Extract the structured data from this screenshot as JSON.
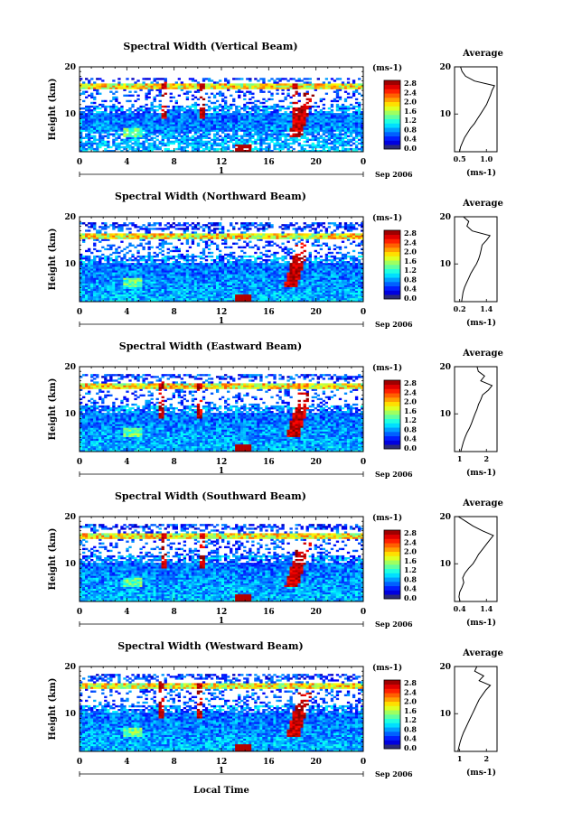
{
  "figure": {
    "xlabel": "Local Time",
    "date_label": "Sep 2006",
    "day_label": "1",
    "ylabel": "Height (km)",
    "colorbar_unit": "(ms-1)",
    "avg_title": "Average",
    "avg_xlabel": "(ms-1)"
  },
  "chart_data": [
    {
      "type": "heatmap",
      "title": "Spectral Width (Vertical Beam)",
      "xlabel": "Local Time",
      "ylabel": "Height (km)",
      "x_ticks": [
        "0",
        "4",
        "8",
        "12",
        "16",
        "20",
        "0"
      ],
      "y_ticks": [
        10,
        20
      ],
      "xlim": [
        0,
        24
      ],
      "ylim": [
        2,
        20
      ],
      "colorbar": {
        "unit": "(ms-1)",
        "ticks": [
          "0.0",
          "0.4",
          "0.8",
          "1.2",
          "1.6",
          "2.0",
          "2.4",
          "2.8"
        ]
      },
      "features": {
        "tropopause_height_km": 15.8,
        "noise_above_km": 17.5,
        "spikes_hours": [
          7.2,
          10.3,
          18.3
        ],
        "plume_hour": 18.8
      },
      "average_profile": {
        "title": "Average",
        "xlabel": "(ms-1)",
        "xlim": [
          0.4,
          1.25
        ],
        "x_ticks": [
          "0.5",
          "1.0"
        ],
        "height_km": [
          2,
          3,
          4,
          5,
          6,
          7,
          8,
          9,
          10,
          11,
          12,
          13,
          14,
          15,
          16,
          17,
          18,
          19,
          20
        ],
        "values": [
          0.5,
          0.52,
          0.56,
          0.6,
          0.66,
          0.72,
          0.8,
          0.86,
          0.92,
          0.98,
          1.04,
          1.08,
          1.12,
          1.15,
          1.2,
          0.8,
          0.62,
          0.55,
          0.52
        ]
      }
    },
    {
      "type": "heatmap",
      "title": "Spectral Width (Northward Beam)",
      "xlabel": "Local Time",
      "ylabel": "Height (km)",
      "x_ticks": [
        "0",
        "4",
        "8",
        "12",
        "16",
        "20",
        "0"
      ],
      "y_ticks": [
        10,
        20
      ],
      "xlim": [
        0,
        24
      ],
      "ylim": [
        2,
        20
      ],
      "colorbar": {
        "unit": "(ms-1)",
        "ticks": [
          "0.0",
          "0.4",
          "0.8",
          "1.2",
          "1.6",
          "2.0",
          "2.4",
          "2.8"
        ]
      },
      "features": {
        "tropopause_height_km": 15.8,
        "noise_above_km": 19,
        "spikes_hours": [],
        "plume_hour": 18.4
      },
      "average_profile": {
        "title": "Average",
        "xlabel": "(ms-1)",
        "xlim": [
          0.2,
          1.4
        ],
        "x_ticks": [
          "0.2",
          "1.4"
        ],
        "height_km": [
          2,
          3,
          4,
          5,
          6,
          7,
          8,
          9,
          10,
          11,
          12,
          13,
          14,
          15,
          16,
          17,
          18,
          19,
          20
        ],
        "values": [
          0.4,
          0.42,
          0.44,
          0.48,
          0.54,
          0.6,
          0.66,
          0.74,
          0.82,
          0.88,
          0.92,
          0.95,
          0.98,
          1.1,
          1.2,
          0.7,
          0.55,
          0.6,
          0.45
        ]
      }
    },
    {
      "type": "heatmap",
      "title": "Spectral Width (Eastward Beam)",
      "xlabel": "Local Time",
      "ylabel": "Height (km)",
      "x_ticks": [
        "0",
        "4",
        "8",
        "12",
        "16",
        "20",
        "0"
      ],
      "y_ticks": [
        10,
        20
      ],
      "xlim": [
        0,
        24
      ],
      "ylim": [
        2,
        20
      ],
      "colorbar": {
        "unit": "(ms-1)",
        "ticks": [
          "0.0",
          "0.4",
          "0.8",
          "1.2",
          "1.6",
          "2.0",
          "2.4",
          "2.8"
        ]
      },
      "features": {
        "tropopause_height_km": 15.8,
        "noise_above_km": 18.5,
        "spikes_hours": [
          7.0,
          10.2
        ],
        "plume_hour": 18.6
      },
      "average_profile": {
        "title": "Average",
        "xlabel": "(ms-1)",
        "xlim": [
          0.5,
          2.2
        ],
        "x_ticks": [
          "1",
          "2"
        ],
        "height_km": [
          2,
          3,
          4,
          5,
          6,
          7,
          8,
          9,
          10,
          11,
          12,
          13,
          14,
          15,
          16,
          17,
          18,
          19,
          20
        ],
        "values": [
          0.75,
          0.8,
          0.85,
          0.92,
          1.0,
          1.1,
          1.18,
          1.25,
          1.32,
          1.4,
          1.46,
          1.55,
          1.62,
          1.85,
          2.0,
          1.55,
          1.7,
          1.45,
          1.4
        ]
      }
    },
    {
      "type": "heatmap",
      "title": "Spectral Width (Southward Beam)",
      "xlabel": "Local Time",
      "ylabel": "Height (km)",
      "x_ticks": [
        "0",
        "4",
        "8",
        "12",
        "16",
        "20",
        "0"
      ],
      "y_ticks": [
        10,
        20
      ],
      "xlim": [
        0,
        24
      ],
      "ylim": [
        2,
        20
      ],
      "colorbar": {
        "unit": "(ms-1)",
        "ticks": [
          "0.0",
          "0.4",
          "0.8",
          "1.2",
          "1.6",
          "2.0",
          "2.4",
          "2.8"
        ]
      },
      "features": {
        "tropopause_height_km": 15.8,
        "noise_above_km": 18.5,
        "spikes_hours": [
          7.2,
          10.3
        ],
        "plume_hour": 18.5
      },
      "average_profile": {
        "title": "Average",
        "xlabel": "(ms-1)",
        "xlim": [
          0.3,
          1.45
        ],
        "x_ticks": [
          "0.4",
          "1.4"
        ],
        "height_km": [
          2,
          3,
          4,
          5,
          6,
          7,
          8,
          9,
          10,
          11,
          12,
          13,
          14,
          15,
          16,
          17,
          18,
          19,
          20
        ],
        "values": [
          0.45,
          0.42,
          0.44,
          0.5,
          0.55,
          0.52,
          0.58,
          0.68,
          0.8,
          0.88,
          0.95,
          1.05,
          1.15,
          1.25,
          1.35,
          1.05,
          0.8,
          0.6,
          0.4
        ]
      }
    },
    {
      "type": "heatmap",
      "title": "Spectral Width (Westward Beam)",
      "xlabel": "Local Time",
      "ylabel": "Height (km)",
      "x_ticks": [
        "0",
        "4",
        "8",
        "12",
        "16",
        "20",
        "0"
      ],
      "y_ticks": [
        10,
        20
      ],
      "xlim": [
        0,
        24
      ],
      "ylim": [
        2,
        20
      ],
      "colorbar": {
        "unit": "(ms-1)",
        "ticks": [
          "0.0",
          "0.4",
          "0.8",
          "1.2",
          "1.6",
          "2.0",
          "2.4",
          "2.8"
        ]
      },
      "features": {
        "tropopause_height_km": 15.8,
        "noise_above_km": 18.5,
        "spikes_hours": [
          7.0,
          10.2
        ],
        "plume_hour": 18.6
      },
      "average_profile": {
        "title": "Average",
        "xlabel": "(ms-1)",
        "xlim": [
          0.5,
          2.4
        ],
        "x_ticks": [
          "1",
          "2"
        ],
        "height_km": [
          2,
          3,
          4,
          5,
          6,
          7,
          8,
          9,
          10,
          11,
          12,
          13,
          14,
          15,
          16,
          17,
          18,
          19,
          20
        ],
        "values": [
          0.65,
          0.7,
          0.75,
          0.82,
          0.9,
          1.0,
          1.1,
          1.2,
          1.3,
          1.4,
          1.5,
          1.6,
          1.75,
          1.9,
          2.1,
          1.6,
          1.8,
          1.4,
          1.5
        ]
      }
    }
  ]
}
